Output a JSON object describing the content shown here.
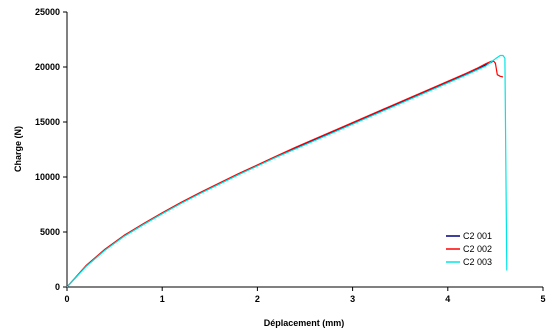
{
  "chart_data": {
    "type": "line",
    "title": "",
    "xlabel": "Déplacement (mm)",
    "ylabel": "Charge (N)",
    "xlim": [
      0,
      5
    ],
    "ylim": [
      0,
      25000
    ],
    "x_ticks": [
      "0",
      "1",
      "2",
      "3",
      "4",
      "5"
    ],
    "y_ticks": [
      "0",
      "5000",
      "10000",
      "15000",
      "20000",
      "25000"
    ],
    "grid": false,
    "legend_position": "bottom-right",
    "series": [
      {
        "name": "C2 001",
        "color": "#000080",
        "points": [
          [
            0,
            0
          ],
          [
            0.2,
            1900
          ],
          [
            0.4,
            3400
          ],
          [
            0.6,
            4650
          ],
          [
            0.8,
            5700
          ],
          [
            1.0,
            6700
          ],
          [
            1.2,
            7650
          ],
          [
            1.4,
            8550
          ],
          [
            1.6,
            9400
          ],
          [
            1.8,
            10250
          ],
          [
            2.0,
            11050
          ],
          [
            2.2,
            11850
          ],
          [
            2.4,
            12650
          ],
          [
            2.6,
            13400
          ],
          [
            2.8,
            14150
          ],
          [
            3.0,
            14900
          ],
          [
            3.2,
            15650
          ],
          [
            3.4,
            16400
          ],
          [
            3.6,
            17150
          ],
          [
            3.8,
            17900
          ],
          [
            4.0,
            18650
          ],
          [
            4.2,
            19350
          ],
          [
            4.3,
            19750
          ],
          [
            4.4,
            20200
          ],
          [
            4.45,
            20400
          ],
          [
            4.48,
            20550
          ]
        ]
      },
      {
        "name": "C2 002",
        "color": "#ff0000",
        "points": [
          [
            0,
            0
          ],
          [
            0.2,
            1950
          ],
          [
            0.4,
            3450
          ],
          [
            0.6,
            4700
          ],
          [
            0.8,
            5750
          ],
          [
            1.0,
            6750
          ],
          [
            1.2,
            7700
          ],
          [
            1.4,
            8600
          ],
          [
            1.6,
            9450
          ],
          [
            1.8,
            10300
          ],
          [
            2.0,
            11100
          ],
          [
            2.2,
            11900
          ],
          [
            2.4,
            12700
          ],
          [
            2.6,
            13450
          ],
          [
            2.8,
            14200
          ],
          [
            3.0,
            14950
          ],
          [
            3.2,
            15700
          ],
          [
            3.4,
            16450
          ],
          [
            3.6,
            17200
          ],
          [
            3.8,
            17950
          ],
          [
            4.0,
            18700
          ],
          [
            4.2,
            19450
          ],
          [
            4.3,
            19850
          ],
          [
            4.4,
            20300
          ],
          [
            4.45,
            20500
          ],
          [
            4.48,
            20550
          ],
          [
            4.5,
            20350
          ],
          [
            4.52,
            19300
          ],
          [
            4.55,
            19150
          ],
          [
            4.58,
            19100
          ]
        ]
      },
      {
        "name": "C2 003",
        "color": "#00e5e5",
        "points": [
          [
            0,
            0
          ],
          [
            0.2,
            1850
          ],
          [
            0.4,
            3350
          ],
          [
            0.6,
            4600
          ],
          [
            0.8,
            5650
          ],
          [
            1.0,
            6650
          ],
          [
            1.2,
            7600
          ],
          [
            1.4,
            8500
          ],
          [
            1.6,
            9350
          ],
          [
            1.8,
            10200
          ],
          [
            2.0,
            11000
          ],
          [
            2.2,
            11800
          ],
          [
            2.4,
            12550
          ],
          [
            2.6,
            13300
          ],
          [
            2.8,
            14050
          ],
          [
            3.0,
            14800
          ],
          [
            3.2,
            15550
          ],
          [
            3.4,
            16300
          ],
          [
            3.6,
            17050
          ],
          [
            3.8,
            17800
          ],
          [
            4.0,
            18550
          ],
          [
            4.2,
            19300
          ],
          [
            4.3,
            19700
          ],
          [
            4.4,
            20100
          ],
          [
            4.5,
            20750
          ],
          [
            4.55,
            21050
          ],
          [
            4.58,
            21050
          ],
          [
            4.6,
            20800
          ],
          [
            4.62,
            1500
          ]
        ]
      }
    ]
  }
}
